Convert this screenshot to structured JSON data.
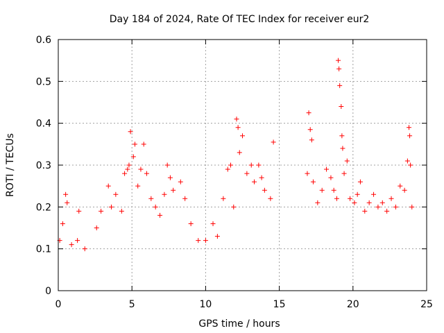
{
  "chart_data": {
    "type": "scatter",
    "title": "Day 184 of 2024, Rate Of TEC Index for receiver eur2",
    "xlabel": "GPS time / hours",
    "ylabel": "ROTI / TECUs",
    "xlim": [
      0,
      25
    ],
    "ylim": [
      0,
      0.6
    ],
    "x_ticks": [
      "0",
      "5",
      "10",
      "15",
      "20",
      "25"
    ],
    "y_ticks": [
      "0",
      "0.1",
      "0.2",
      "0.3",
      "0.4",
      "0.5",
      "0.6"
    ],
    "grid": true,
    "marker": "+",
    "color": "#ff0000",
    "series": [
      {
        "points": [
          [
            0.1,
            0.12
          ],
          [
            0.3,
            0.16
          ],
          [
            0.5,
            0.23
          ],
          [
            0.6,
            0.21
          ],
          [
            0.9,
            0.11
          ],
          [
            1.3,
            0.12
          ],
          [
            1.4,
            0.19
          ],
          [
            1.8,
            0.1
          ],
          [
            2.6,
            0.15
          ],
          [
            2.9,
            0.19
          ],
          [
            3.4,
            0.25
          ],
          [
            3.6,
            0.2
          ],
          [
            3.9,
            0.23
          ],
          [
            4.3,
            0.19
          ],
          [
            4.5,
            0.28
          ],
          [
            4.7,
            0.29
          ],
          [
            4.8,
            0.3
          ],
          [
            4.9,
            0.38
          ],
          [
            5.1,
            0.32
          ],
          [
            5.2,
            0.35
          ],
          [
            5.4,
            0.25
          ],
          [
            5.6,
            0.29
          ],
          [
            5.8,
            0.35
          ],
          [
            6.0,
            0.28
          ],
          [
            6.3,
            0.22
          ],
          [
            6.6,
            0.2
          ],
          [
            6.9,
            0.18
          ],
          [
            7.2,
            0.23
          ],
          [
            7.4,
            0.3
          ],
          [
            7.6,
            0.27
          ],
          [
            7.8,
            0.24
          ],
          [
            8.3,
            0.26
          ],
          [
            8.6,
            0.22
          ],
          [
            9.0,
            0.16
          ],
          [
            9.5,
            0.12
          ],
          [
            10.0,
            0.12
          ],
          [
            10.5,
            0.16
          ],
          [
            10.8,
            0.13
          ],
          [
            11.2,
            0.22
          ],
          [
            11.5,
            0.29
          ],
          [
            11.7,
            0.3
          ],
          [
            11.9,
            0.2
          ],
          [
            12.1,
            0.41
          ],
          [
            12.2,
            0.39
          ],
          [
            12.3,
            0.33
          ],
          [
            12.5,
            0.37
          ],
          [
            12.8,
            0.28
          ],
          [
            13.1,
            0.3
          ],
          [
            13.3,
            0.26
          ],
          [
            13.6,
            0.3
          ],
          [
            13.8,
            0.27
          ],
          [
            14.0,
            0.24
          ],
          [
            14.4,
            0.22
          ],
          [
            14.6,
            0.355
          ],
          [
            16.9,
            0.28
          ],
          [
            17.0,
            0.425
          ],
          [
            17.1,
            0.385
          ],
          [
            17.2,
            0.36
          ],
          [
            17.3,
            0.26
          ],
          [
            17.6,
            0.21
          ],
          [
            17.9,
            0.24
          ],
          [
            18.2,
            0.29
          ],
          [
            18.5,
            0.27
          ],
          [
            18.7,
            0.24
          ],
          [
            18.9,
            0.22
          ],
          [
            19.0,
            0.55
          ],
          [
            19.05,
            0.53
          ],
          [
            19.1,
            0.49
          ],
          [
            19.2,
            0.44
          ],
          [
            19.25,
            0.37
          ],
          [
            19.3,
            0.34
          ],
          [
            19.4,
            0.28
          ],
          [
            19.6,
            0.31
          ],
          [
            19.8,
            0.22
          ],
          [
            20.1,
            0.21
          ],
          [
            20.3,
            0.23
          ],
          [
            20.5,
            0.26
          ],
          [
            20.8,
            0.19
          ],
          [
            21.1,
            0.21
          ],
          [
            21.4,
            0.23
          ],
          [
            21.7,
            0.2
          ],
          [
            22.0,
            0.21
          ],
          [
            22.3,
            0.19
          ],
          [
            22.6,
            0.22
          ],
          [
            22.9,
            0.2
          ],
          [
            23.2,
            0.25
          ],
          [
            23.5,
            0.24
          ],
          [
            23.7,
            0.31
          ],
          [
            23.8,
            0.39
          ],
          [
            23.85,
            0.37
          ],
          [
            23.9,
            0.3
          ],
          [
            24.0,
            0.2
          ]
        ]
      }
    ]
  }
}
